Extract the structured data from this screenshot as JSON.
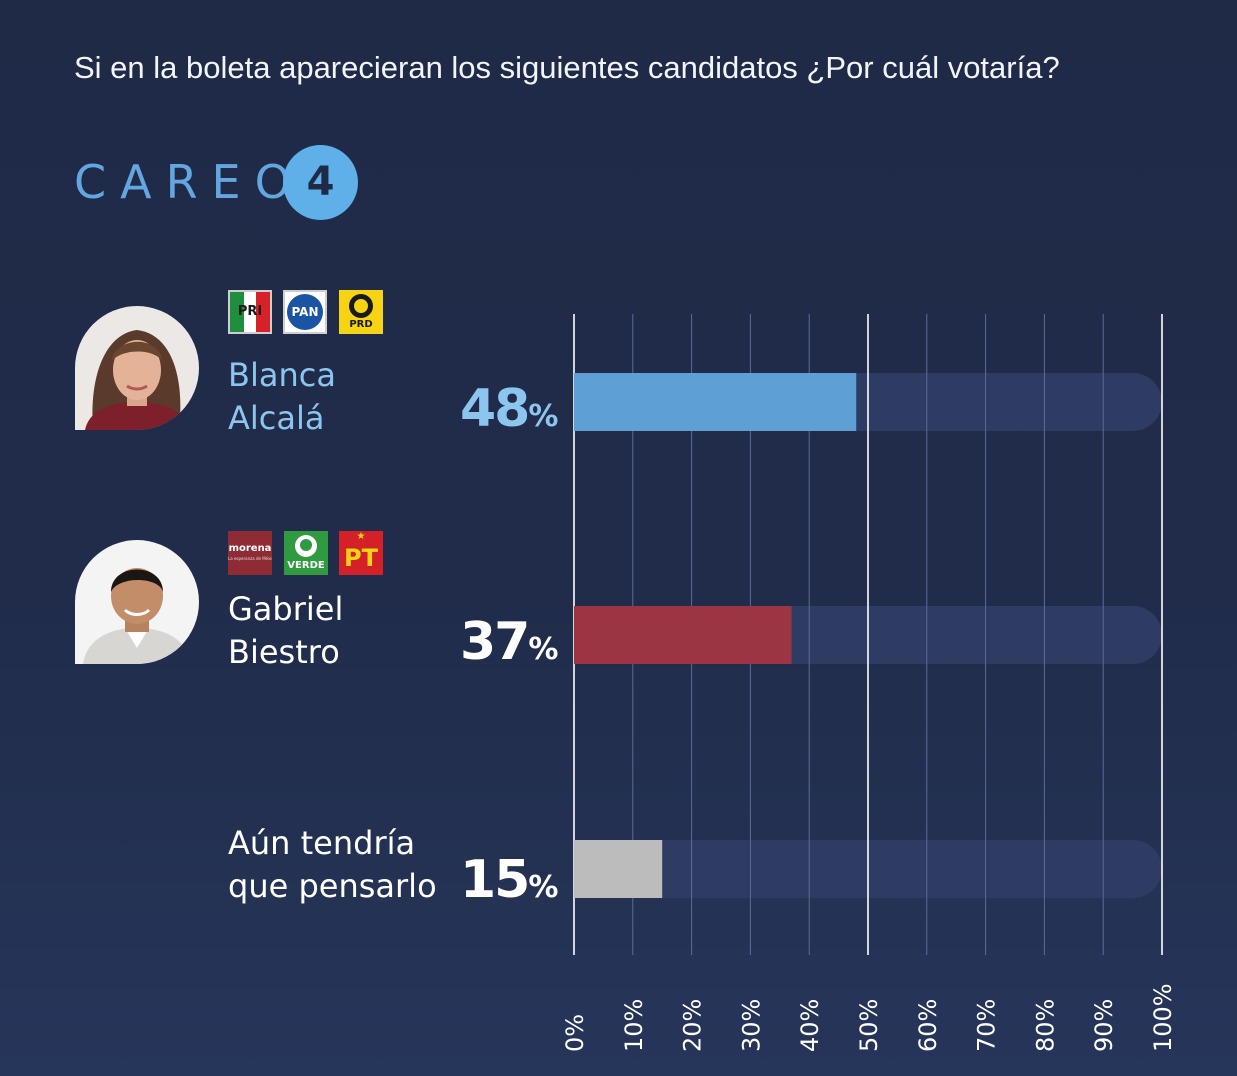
{
  "question": "Si en la boleta aparecieran los siguientes candidatos ¿Por cuál votaría?",
  "careo": {
    "label": "CAREO",
    "number": "4"
  },
  "candidates": [
    {
      "name_line1": "Blanca",
      "name_line2": "Alcalá",
      "percent": "48",
      "percent_sign": "%",
      "name_color": "#8cc6ef",
      "parties": [
        {
          "label": "PRI",
          "icon": "pri-logo"
        },
        {
          "label": "PAN",
          "icon": "pan-logo"
        },
        {
          "label": "PRD",
          "icon": "prd-logo"
        }
      ]
    },
    {
      "name_line1": "Gabriel",
      "name_line2": "Biestro",
      "percent": "37",
      "percent_sign": "%",
      "name_color": "#ffffff",
      "parties": [
        {
          "label": "morena",
          "sub": "La esperanza de México",
          "icon": "morena-logo"
        },
        {
          "label": "VERDE",
          "icon": "verde-logo"
        },
        {
          "label": "PT",
          "icon": "pt-logo"
        }
      ]
    },
    {
      "name_line1": "Aún tendría",
      "name_line2": "que pensarlo",
      "percent": "15",
      "percent_sign": "%",
      "name_color": "#ffffff"
    }
  ],
  "chart_data": {
    "type": "bar",
    "orientation": "horizontal",
    "categories": [
      "Blanca Alcalá",
      "Gabriel Biestro",
      "Aún tendría que pensarlo"
    ],
    "values": [
      48,
      37,
      15
    ],
    "colors": [
      "#5e9fd6",
      "#9b3543",
      "#bcbcbc"
    ],
    "track_color": "#2e3b63",
    "xlim": [
      0,
      100
    ],
    "ticks": [
      "0%",
      "10%",
      "20%",
      "30%",
      "40%",
      "50%",
      "60%",
      "70%",
      "80%",
      "90%",
      "100%"
    ],
    "grid": true
  }
}
